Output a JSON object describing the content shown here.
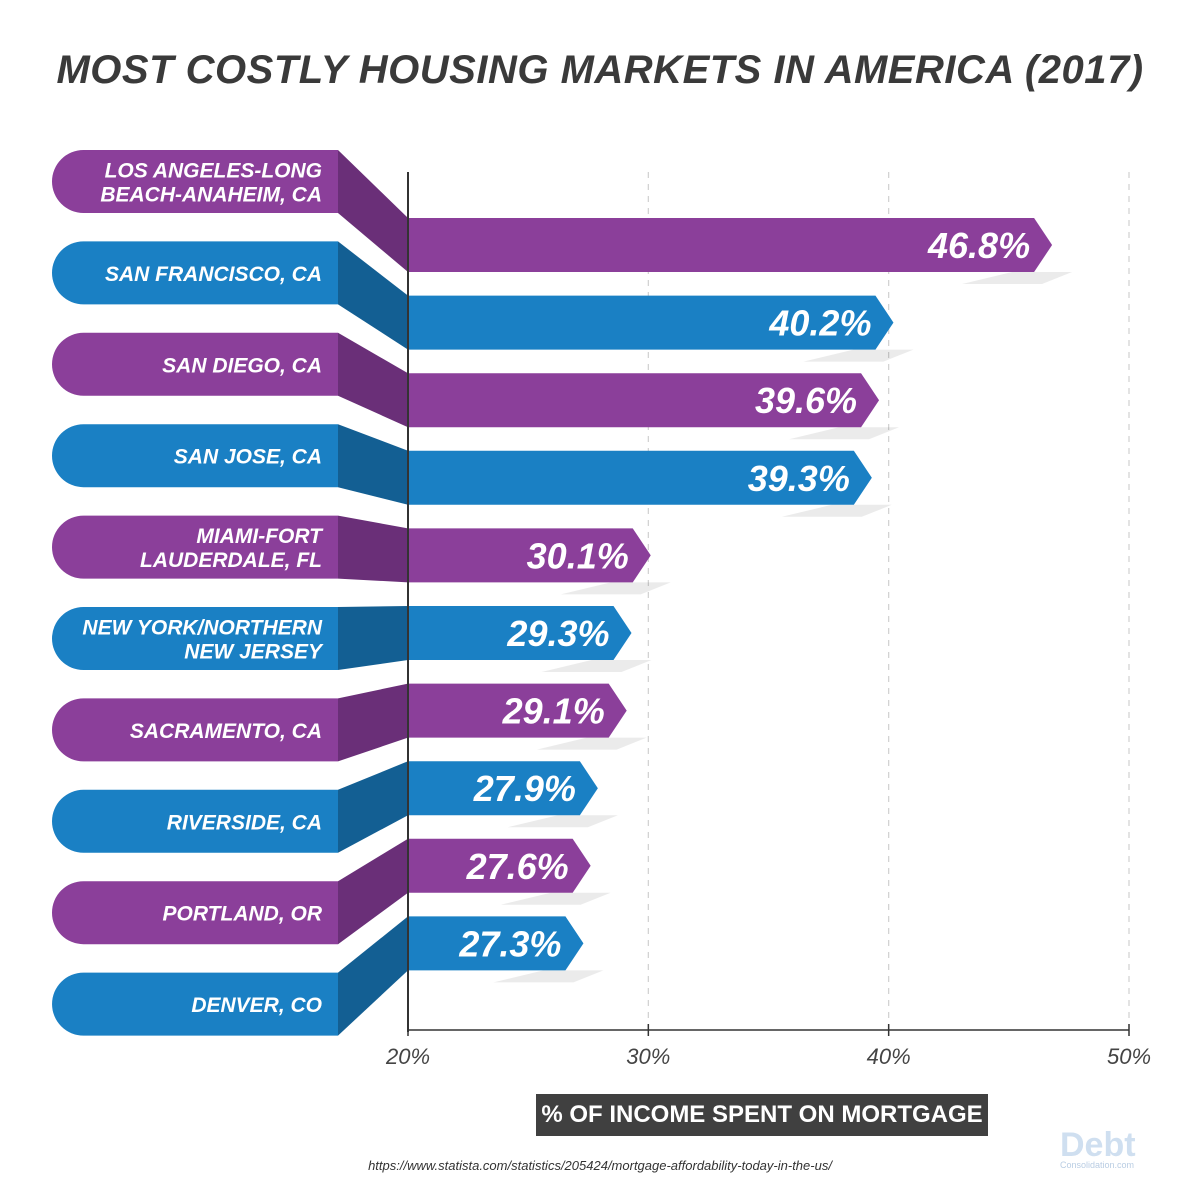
{
  "title": "MOST COSTLY HOUSING MARKETS IN AMERICA (2017)",
  "chart_data": {
    "type": "bar",
    "orientation": "horizontal",
    "xlabel": "% OF INCOME SPENT ON MORTGAGE",
    "xlim": [
      20,
      50
    ],
    "ticks": [
      20,
      30,
      40,
      50
    ],
    "tick_labels": [
      "20%",
      "30%",
      "40%",
      "50%"
    ],
    "grid": true,
    "categories": [
      [
        "LOS ANGELES-LONG",
        "BEACH-ANAHEIM, CA"
      ],
      [
        "SAN FRANCISCO, CA"
      ],
      [
        "SAN DIEGO, CA"
      ],
      [
        "SAN JOSE, CA"
      ],
      [
        "MIAMI-FORT",
        "LAUDERDALE, FL"
      ],
      [
        "NEW YORK/NORTHERN",
        "NEW JERSEY"
      ],
      [
        "SACRAMENTO, CA"
      ],
      [
        "RIVERSIDE, CA"
      ],
      [
        "PORTLAND, OR"
      ],
      [
        "DENVER, CO"
      ]
    ],
    "values": [
      46.8,
      40.2,
      39.6,
      39.3,
      30.1,
      29.3,
      29.1,
      27.9,
      27.6,
      27.3
    ],
    "value_labels": [
      "46.8%",
      "40.2%",
      "39.6%",
      "39.3%",
      "30.1%",
      "29.3%",
      "29.1%",
      "27.9%",
      "27.6%",
      "27.3%"
    ],
    "colors": [
      "#8b3f9a",
      "#1a80c4",
      "#8b3f9a",
      "#1a80c4",
      "#8b3f9a",
      "#1a80c4",
      "#8b3f9a",
      "#1a80c4",
      "#8b3f9a",
      "#1a80c4"
    ]
  },
  "source": "https://www.statista.com/statistics/205424/mortgage-affordability-today-in-the-us/",
  "logo": {
    "main": "Debt",
    "sub": "Consolidation.com"
  },
  "palette": {
    "purple": "#8b3f9a",
    "purple_dark": "#6a2f78",
    "blue": "#1a80c4",
    "blue_dark": "#135f93",
    "axis": "#333333",
    "grid": "#d0d0d0"
  }
}
